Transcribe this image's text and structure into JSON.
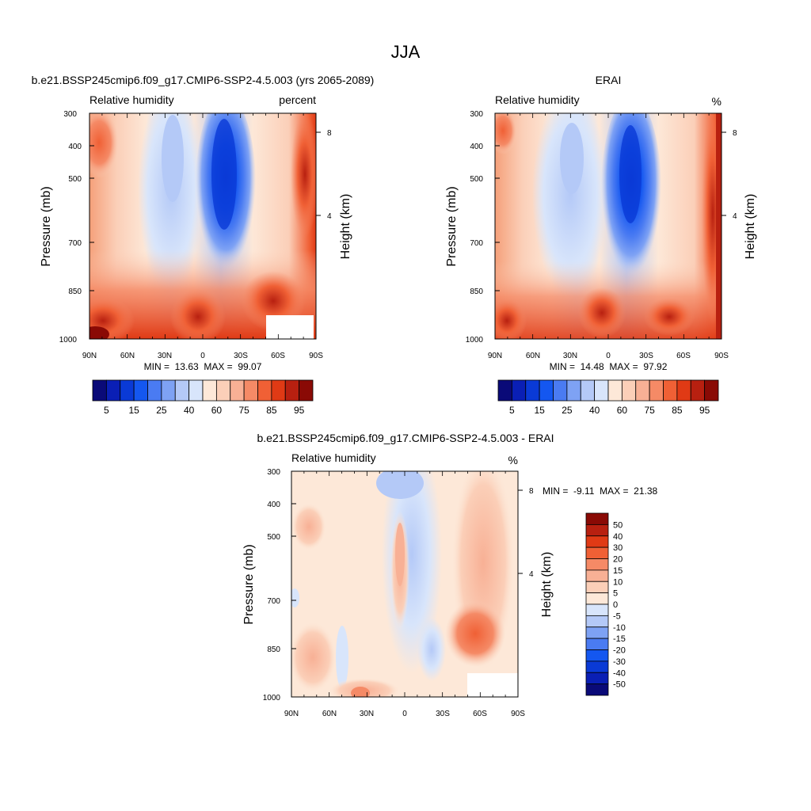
{
  "figure_title": "JJA",
  "chart_data": [
    {
      "type": "heatmap",
      "title": "b.e21.BSSP245cmip6.f09_g17.CMIP6-SSP2-4.5.003 (yrs 2065-2089)",
      "variable": "Relative humidity",
      "units": "percent",
      "xlabel": "",
      "ylabel": "Pressure (mb)",
      "y2label": "Height (km)",
      "x_ticks": [
        "90N",
        "60N",
        "30N",
        "0",
        "30S",
        "60S",
        "90S"
      ],
      "y_ticks": [
        "300",
        "400",
        "500",
        "700",
        "850",
        "1000"
      ],
      "y2_ticks": [
        "8",
        "4"
      ],
      "y_scale": "log-pressure",
      "ylim": [
        1000,
        300
      ],
      "min": 13.63,
      "max": 99.07,
      "stats_text": "MIN =  13.63  MAX =  99.07",
      "colorbar": {
        "orientation": "horizontal",
        "labels": [
          "5",
          "15",
          "25",
          "40",
          "60",
          "75",
          "85",
          "95"
        ],
        "colors": [
          "#0a0a78",
          "#0a1fb5",
          "#0a3ad6",
          "#1457f0",
          "#4a7bf2",
          "#7ea2f4",
          "#b4c9f7",
          "#d8e5fb",
          "#fde8d8",
          "#fbcfb8",
          "#f8b095",
          "#f58a66",
          "#f06035",
          "#e03a15",
          "#b82010",
          "#8a0a05"
        ]
      }
    },
    {
      "type": "heatmap",
      "title": "ERAI",
      "variable": "Relative humidity",
      "units": "%",
      "xlabel": "",
      "ylabel": "Pressure (mb)",
      "y2label": "Height (km)",
      "x_ticks": [
        "90N",
        "60N",
        "30N",
        "0",
        "30S",
        "60S",
        "90S"
      ],
      "y_ticks": [
        "300",
        "400",
        "500",
        "700",
        "850",
        "1000"
      ],
      "y2_ticks": [
        "8",
        "4"
      ],
      "y_scale": "log-pressure",
      "ylim": [
        1000,
        300
      ],
      "min": 14.48,
      "max": 97.92,
      "stats_text": "MIN =  14.48  MAX =  97.92",
      "colorbar": {
        "orientation": "horizontal",
        "labels": [
          "5",
          "15",
          "25",
          "40",
          "60",
          "75",
          "85",
          "95"
        ],
        "colors": [
          "#0a0a78",
          "#0a1fb5",
          "#0a3ad6",
          "#1457f0",
          "#4a7bf2",
          "#7ea2f4",
          "#b4c9f7",
          "#d8e5fb",
          "#fde8d8",
          "#fbcfb8",
          "#f8b095",
          "#f58a66",
          "#f06035",
          "#e03a15",
          "#b82010",
          "#8a0a05"
        ]
      }
    },
    {
      "type": "heatmap",
      "title": "b.e21.BSSP245cmip6.f09_g17.CMIP6-SSP2-4.5.003 - ERAI",
      "variable": "Relative humidity",
      "units": "%",
      "xlabel": "",
      "ylabel": "Pressure (mb)",
      "y2label": "Height (km)",
      "x_ticks": [
        "90N",
        "60N",
        "30N",
        "0",
        "30S",
        "60S",
        "90S"
      ],
      "y_ticks": [
        "300",
        "400",
        "500",
        "700",
        "850",
        "1000"
      ],
      "y2_ticks": [
        "8",
        "4"
      ],
      "y_scale": "log-pressure",
      "ylim": [
        1000,
        300
      ],
      "min": -9.11,
      "max": 21.38,
      "stats_text": "MIN =  -9.11  MAX =  21.38",
      "colorbar": {
        "orientation": "vertical",
        "labels": [
          "50",
          "40",
          "30",
          "20",
          "15",
          "10",
          "5",
          "0",
          "-5",
          "-10",
          "-15",
          "-20",
          "-30",
          "-40",
          "-50"
        ],
        "colors": [
          "#8a0a05",
          "#b82010",
          "#e03a15",
          "#f06035",
          "#f58a66",
          "#f8b095",
          "#fbcfb8",
          "#fde8d8",
          "#d8e5fb",
          "#b4c9f7",
          "#7ea2f4",
          "#4a7bf2",
          "#1457f0",
          "#0a3ad6",
          "#0a1fb5",
          "#0a0a78"
        ]
      }
    }
  ]
}
